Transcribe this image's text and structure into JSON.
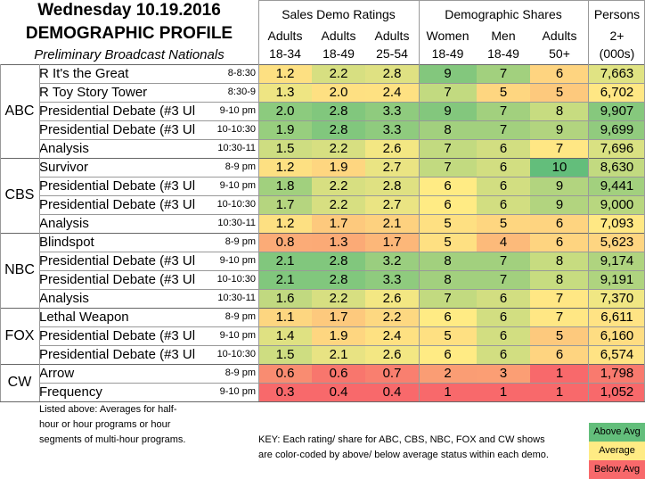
{
  "header": {
    "title_line1": "Wednesday 10.19.2016",
    "title_line2": "DEMOGRAPHIC PROFILE",
    "title_line3": "Preliminary Broadcast Nationals",
    "group_sales": "Sales Demo Ratings",
    "group_shares": "Demographic Shares",
    "group_persons": "Persons",
    "columns": [
      {
        "top": "Adults",
        "bottom": "18-34"
      },
      {
        "top": "Adults",
        "bottom": "18-49"
      },
      {
        "top": "Adults",
        "bottom": "25-54"
      },
      {
        "top": "Women",
        "bottom": "18-49"
      },
      {
        "top": "Men",
        "bottom": "18-49"
      },
      {
        "top": "Adults",
        "bottom": "50+"
      },
      {
        "top": "2+",
        "bottom": "(000s)"
      }
    ]
  },
  "colors": {
    "above": "#63be7b",
    "average": "#ffeb84",
    "below": "#f8696b"
  },
  "networks": [
    {
      "name": "ABC",
      "rows": [
        0,
        4
      ]
    },
    {
      "name": "CBS",
      "rows": [
        5,
        8
      ]
    },
    {
      "name": "NBC",
      "rows": [
        9,
        12
      ]
    },
    {
      "name": "FOX",
      "rows": [
        13,
        15
      ]
    },
    {
      "name": "CW",
      "rows": [
        16,
        17
      ]
    }
  ],
  "rows": [
    {
      "program": "R It's the Great",
      "time": "8-8:30",
      "values": [
        "1.2",
        "2.2",
        "2.8",
        "9",
        "7",
        "6",
        "7,663"
      ],
      "colors": [
        "#fde082",
        "#d7df81",
        "#dfe182",
        "#83c77d",
        "#a2d07e",
        "#fed480",
        "#e0e383"
      ]
    },
    {
      "program": "R Toy Story Tower",
      "time": "8:30-9",
      "values": [
        "1.3",
        "2.0",
        "2.4",
        "7",
        "5",
        "5",
        "6,702"
      ],
      "colors": [
        "#eee583",
        "#fee082",
        "#fee182",
        "#c2da80",
        "#fed680",
        "#fdc97d",
        "#ffe784"
      ]
    },
    {
      "program": "Presidential Debate (#3 Ul",
      "time": "9-10 pm",
      "values": [
        "2.0",
        "2.8",
        "3.3",
        "9",
        "7",
        "8",
        "9,907"
      ],
      "colors": [
        "#8ccb7e",
        "#81c77d",
        "#8fcb7e",
        "#83c77d",
        "#a2d07e",
        "#c7dc80",
        "#86c87d"
      ]
    },
    {
      "program": "Presidential Debate (#3 Ul",
      "time": "10-10:30",
      "values": [
        "1.9",
        "2.8",
        "3.3",
        "8",
        "7",
        "9",
        "9,699"
      ],
      "colors": [
        "#97ce7e",
        "#81c77d",
        "#8fcb7e",
        "#a2d07e",
        "#a2d07e",
        "#b2d47f",
        "#91cb7e"
      ]
    },
    {
      "program": "Analysis",
      "time": "10:30-11",
      "values": [
        "1.5",
        "2.2",
        "2.6",
        "7",
        "6",
        "7",
        "7,696"
      ],
      "colors": [
        "#cedd81",
        "#d7df81",
        "#f3e783",
        "#c2da80",
        "#d2de81",
        "#ffe784",
        "#d9e182"
      ]
    },
    {
      "program": "Survivor",
      "time": "8-9 pm",
      "values": [
        "1.2",
        "1.9",
        "2.7",
        "7",
        "6",
        "10",
        "8,630"
      ],
      "colors": [
        "#fde082",
        "#fed680",
        "#eae483",
        "#c2da80",
        "#d2de81",
        "#63be7b",
        "#c2da80"
      ]
    },
    {
      "program": "Presidential Debate (#3 Ul",
      "time": "9-10 pm",
      "values": [
        "1.8",
        "2.2",
        "2.8",
        "6",
        "6",
        "9",
        "9,441"
      ],
      "colors": [
        "#a1d07e",
        "#d7df81",
        "#dfe182",
        "#ffeb84",
        "#d2de81",
        "#b2d47f",
        "#a2d07e"
      ]
    },
    {
      "program": "Presidential Debate (#3 Ul",
      "time": "10-10:30",
      "values": [
        "1.7",
        "2.2",
        "2.7",
        "6",
        "6",
        "9",
        "9,000"
      ],
      "colors": [
        "#b5d57f",
        "#d7df81",
        "#eae483",
        "#ffeb84",
        "#d2de81",
        "#b2d47f",
        "#b8d77f"
      ]
    },
    {
      "program": "Analysis",
      "time": "10:30-11",
      "values": [
        "1.2",
        "1.7",
        "2.1",
        "5",
        "5",
        "6",
        "7,093"
      ],
      "colors": [
        "#fde082",
        "#fdc97d",
        "#fdd17f",
        "#fee082",
        "#fed680",
        "#fed480",
        "#ffe884"
      ]
    },
    {
      "program": "Blindspot",
      "time": "8-9 pm",
      "values": [
        "0.8",
        "1.3",
        "1.7",
        "5",
        "4",
        "6",
        "5,623"
      ],
      "colors": [
        "#fbab77",
        "#fbaa76",
        "#fcb779",
        "#fee082",
        "#fcba7a",
        "#fed480",
        "#fed581"
      ]
    },
    {
      "program": "Presidential Debate (#3 Ul",
      "time": "9-10 pm",
      "values": [
        "2.1",
        "2.8",
        "3.2",
        "8",
        "7",
        "8",
        "9,174"
      ],
      "colors": [
        "#81c77d",
        "#81c77d",
        "#9ace7f",
        "#a2d07e",
        "#a2d07e",
        "#c7dc80",
        "#afd47f"
      ]
    },
    {
      "program": "Presidential Debate (#3 Ul",
      "time": "10-10:30",
      "values": [
        "2.1",
        "2.8",
        "3.3",
        "8",
        "7",
        "8",
        "9,191"
      ],
      "colors": [
        "#81c77d",
        "#81c77d",
        "#8fcb7e",
        "#a2d07e",
        "#a2d07e",
        "#c7dc80",
        "#afd47f"
      ]
    },
    {
      "program": "Analysis",
      "time": "10:30-11",
      "values": [
        "1.6",
        "2.2",
        "2.6",
        "7",
        "6",
        "7",
        "7,370"
      ],
      "colors": [
        "#c1d980",
        "#d7df81",
        "#f3e783",
        "#c2da80",
        "#d2de81",
        "#ffe784",
        "#f0e783"
      ]
    },
    {
      "program": "Lethal Weapon",
      "time": "8-9 pm",
      "values": [
        "1.1",
        "1.7",
        "2.2",
        "6",
        "6",
        "7",
        "6,611"
      ],
      "colors": [
        "#fdd680",
        "#fdc97d",
        "#fdd881",
        "#ffeb84",
        "#d2de81",
        "#ffe784",
        "#ffe384"
      ]
    },
    {
      "program": "Presidential Debate (#3 Ul",
      "time": "9-10 pm",
      "values": [
        "1.4",
        "1.9",
        "2.4",
        "5",
        "6",
        "5",
        "6,160"
      ],
      "colors": [
        "#dfe182",
        "#fed680",
        "#fee182",
        "#fee082",
        "#d2de81",
        "#fdc97d",
        "#fedd82"
      ]
    },
    {
      "program": "Presidential Debate (#3 Ul",
      "time": "10-10:30",
      "values": [
        "1.5",
        "2.1",
        "2.6",
        "6",
        "6",
        "6",
        "6,574"
      ],
      "colors": [
        "#cedd81",
        "#e8e383",
        "#f3e783",
        "#ffeb84",
        "#d2de81",
        "#fed480",
        "#ffe384"
      ]
    },
    {
      "program": "Arrow",
      "time": "8-9 pm",
      "values": [
        "0.6",
        "0.6",
        "0.7",
        "2",
        "3",
        "1",
        "1,798"
      ],
      "colors": [
        "#f98c71",
        "#f8766d",
        "#f97f6f",
        "#fa9d74",
        "#fb9e74",
        "#f8696b",
        "#f97a6e"
      ]
    },
    {
      "program": "Frequency",
      "time": "9-10 pm",
      "values": [
        "0.3",
        "0.4",
        "0.4",
        "1",
        "1",
        "1",
        "1,052"
      ],
      "colors": [
        "#f8696b",
        "#f8696b",
        "#f8696b",
        "#f8696b",
        "#f8696b",
        "#f8696b",
        "#f8696b"
      ]
    }
  ],
  "footnote": [
    "Listed above: Averages for half-",
    "hour or hour programs or hour",
    "segments of multi-hour programs."
  ],
  "key": [
    "KEY: Each rating/ share for ABC, CBS, NBC, FOX and CW shows",
    "are color-coded by above/ below average status within each demo."
  ],
  "legend": [
    "Above Avg",
    "Average",
    "Below Avg"
  ]
}
